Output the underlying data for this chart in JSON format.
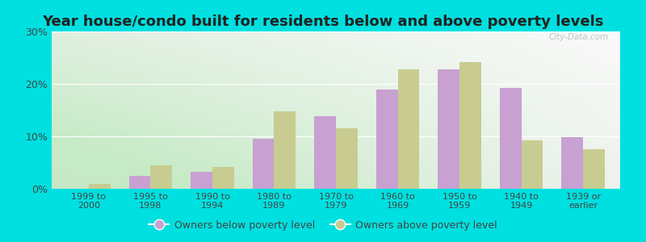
{
  "title": "Year house/condo built for residents below and above poverty levels",
  "categories": [
    "1999 to\n2000",
    "1995 to\n1998",
    "1990 to\n1994",
    "1980 to\n1989",
    "1970 to\n1979",
    "1960 to\n1969",
    "1950 to\n1959",
    "1940 to\n1949",
    "1939 or\nearlier"
  ],
  "below_poverty": [
    0.0,
    2.5,
    3.2,
    9.5,
    13.8,
    19.0,
    22.8,
    19.2,
    9.8
  ],
  "above_poverty": [
    1.0,
    4.5,
    4.2,
    14.8,
    11.5,
    22.8,
    24.2,
    9.2,
    7.5
  ],
  "below_color": "#c8a0d2",
  "above_color": "#c8cc90",
  "bg_top_left": "#d8eecc",
  "bg_top_right": "#f0f5ee",
  "bg_bottom_left": "#c8e8b8",
  "bg_bottom_right": "#f5f5f0",
  "outer_color": "#00e0e0",
  "ylim": [
    0,
    30
  ],
  "yticks": [
    0,
    10,
    20,
    30
  ],
  "ytick_labels": [
    "0%",
    "10%",
    "20%",
    "30%"
  ],
  "title_fontsize": 13,
  "legend_below_label": "Owners below poverty level",
  "legend_above_label": "Owners above poverty level",
  "bar_width": 0.35,
  "watermark": "City-Data.com"
}
